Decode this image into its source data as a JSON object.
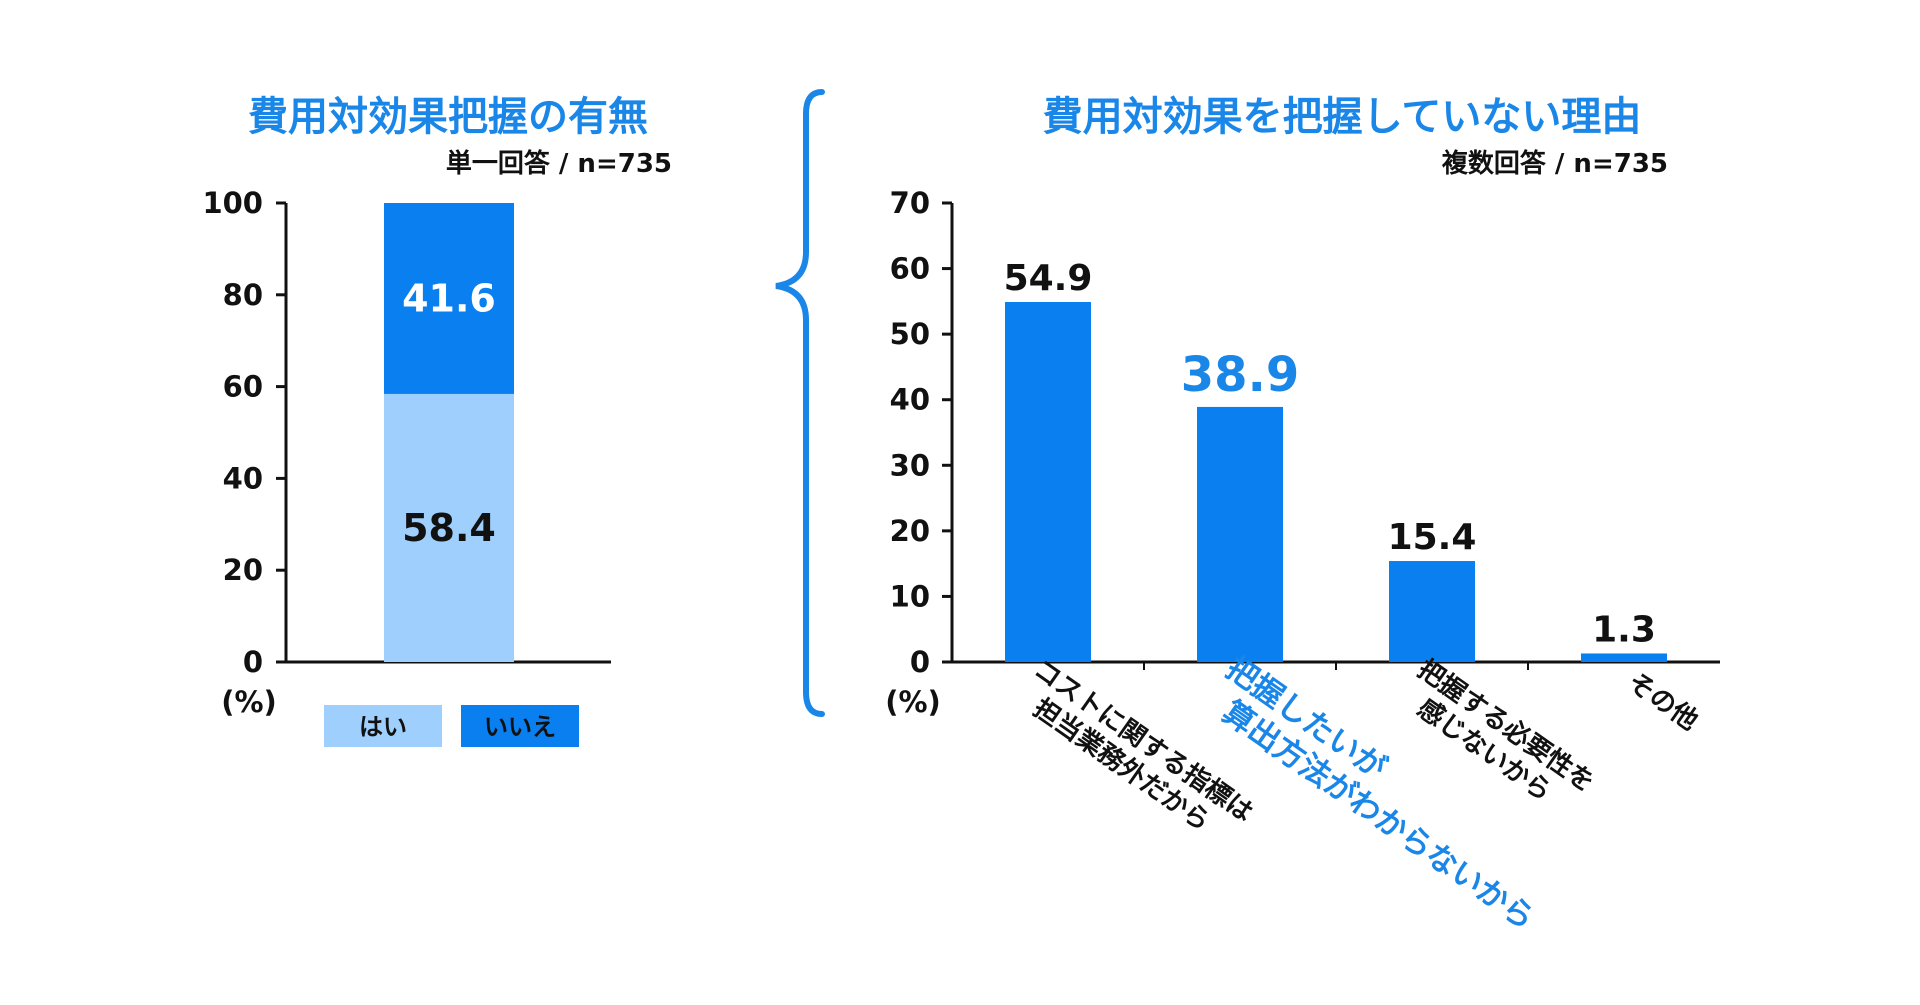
{
  "colors": {
    "accent": "#1a87e8",
    "bar": "#0a7ff0",
    "bar_light": "#9fcffc",
    "text": "#111111",
    "white": "#ffffff"
  },
  "chart_data": [
    {
      "type": "bar",
      "stacked": true,
      "title": "費用対効果把握の有無",
      "subtitle": "単一回答 / n=735",
      "ylabel": "(%)",
      "ylim": [
        0,
        100
      ],
      "yticks": [
        "0",
        "20",
        "40",
        "60",
        "80",
        "100"
      ],
      "categories": [
        ""
      ],
      "series": [
        {
          "name": "はい",
          "values": [
            58.4
          ],
          "labels": [
            "58.4"
          ],
          "color": "#9fcffc",
          "label_color": "#111111"
        },
        {
          "name": "いいえ",
          "values": [
            41.6
          ],
          "labels": [
            "41.6"
          ],
          "color": "#0a7ff0",
          "label_color": "#ffffff"
        }
      ],
      "legend": "bottom",
      "grid": false
    },
    {
      "type": "bar",
      "title": "費用対効果を把握していない理由",
      "subtitle": "複数回答 / n=735",
      "ylabel": "(%)",
      "ylim": [
        0,
        70
      ],
      "yticks": [
        "0",
        "10",
        "20",
        "30",
        "40",
        "50",
        "60",
        "70"
      ],
      "categories": [
        {
          "lines": [
            "コストに関する指標は",
            "担当業務外だから"
          ],
          "highlight": false
        },
        {
          "lines": [
            "把握したいが",
            "算出方法がわからないから"
          ],
          "highlight": true
        },
        {
          "lines": [
            "把握する必要性を",
            "感じないから"
          ],
          "highlight": false
        },
        {
          "lines": [
            "その他"
          ],
          "highlight": false
        }
      ],
      "values": [
        54.9,
        38.9,
        15.4,
        1.3
      ],
      "labels": [
        "54.9",
        "38.9",
        "15.4",
        "1.3"
      ],
      "highlight_index": 1,
      "grid": false
    }
  ]
}
